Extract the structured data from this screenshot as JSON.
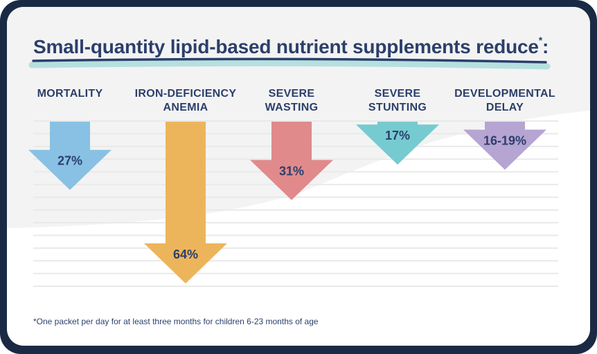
{
  "title": {
    "text": "Small-quantity lipid-based nutrient supplements reduce",
    "superscript": "*",
    "suffix": ":"
  },
  "footnote": "*One packet per day for at least three months for children 6-23 months of age",
  "colors": {
    "frame": "#1b2a44",
    "text": "#2b3f6b",
    "underline_dark": "#2b3f6b",
    "underline_light": "#b6e0df",
    "grid": "#e9e9e9",
    "background_tint": "#f3f3f3"
  },
  "chart_data": {
    "type": "bar",
    "orientation": "downward-arrows",
    "title": "Small-quantity lipid-based nutrient supplements reduce*:",
    "xlabel": "",
    "ylabel": "",
    "ylim": [
      0,
      64
    ],
    "grid": true,
    "categories": [
      "MORTALITY",
      "IRON-DEFICIENCY ANEMIA",
      "SEVERE WASTING",
      "SEVERE STUNTING",
      "DEVELOPMENTAL DELAY"
    ],
    "category_lines": [
      [
        "MORTALITY"
      ],
      [
        "IRON-DEFICIENCY",
        "ANEMIA"
      ],
      [
        "SEVERE",
        "WASTING"
      ],
      [
        "SEVERE",
        "STUNTING"
      ],
      [
        "DEVELOPMENTAL",
        "DELAY"
      ]
    ],
    "values": [
      27,
      64,
      31,
      17,
      19
    ],
    "value_ranges": [
      null,
      null,
      null,
      null,
      [
        16,
        19
      ]
    ],
    "data_labels": [
      "27%",
      "64%",
      "31%",
      "17%",
      "16-19%"
    ],
    "series_colors": [
      "#88c1e3",
      "#edb55b",
      "#e08a8b",
      "#76cbd0",
      "#b6a4d3"
    ]
  }
}
